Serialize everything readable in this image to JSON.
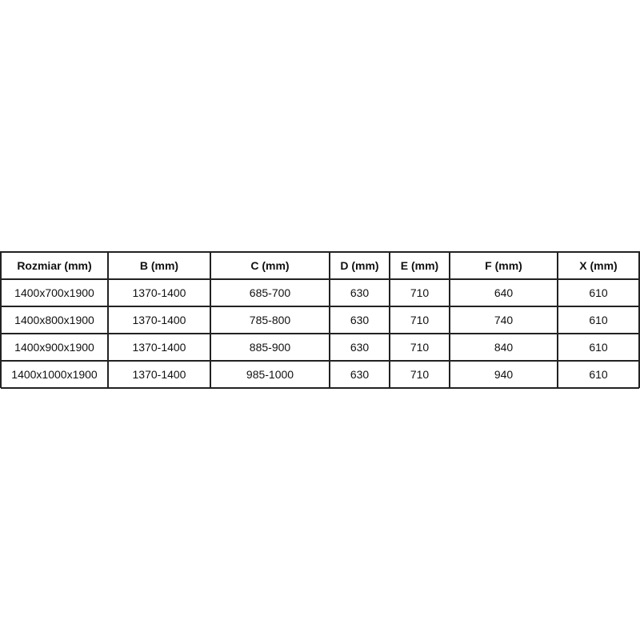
{
  "table": {
    "headers": [
      "Rozmiar (mm)",
      "B (mm)",
      "C (mm)",
      "D (mm)",
      "E (mm)",
      "F (mm)",
      "X (mm)"
    ],
    "rows": [
      [
        "1400x700x1900",
        "1370-1400",
        "685-700",
        "630",
        "710",
        "640",
        "610"
      ],
      [
        "1400x800x1900",
        "1370-1400",
        "785-800",
        "630",
        "710",
        "740",
        "610"
      ],
      [
        "1400x900x1900",
        "1370-1400",
        "885-900",
        "630",
        "710",
        "840",
        "610"
      ],
      [
        "1400x1000x1900",
        "1370-1400",
        "985-1000",
        "630",
        "710",
        "940",
        "610"
      ]
    ]
  }
}
